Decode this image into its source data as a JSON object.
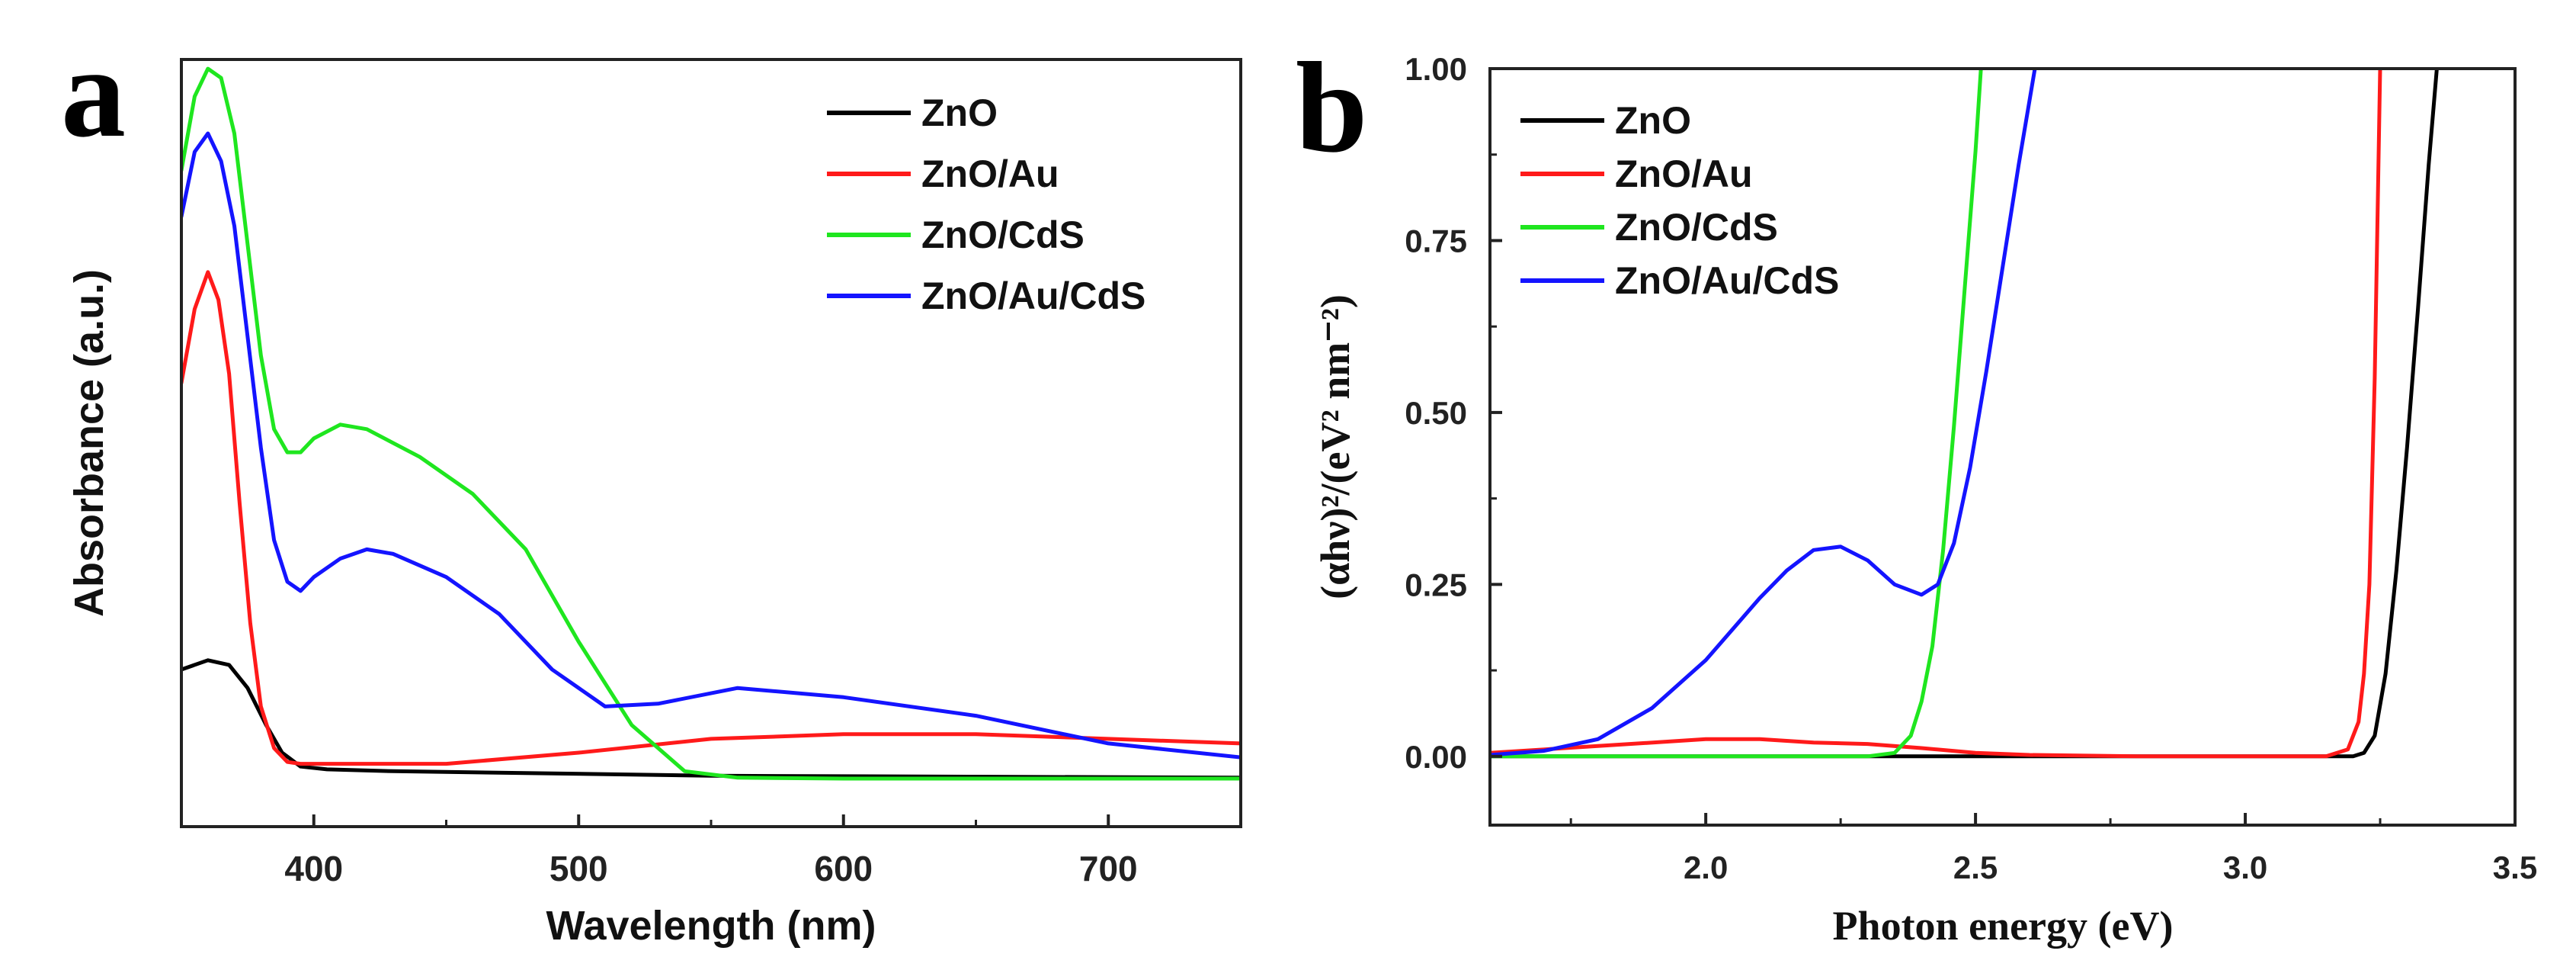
{
  "chart_data": [
    {
      "panel_label": "a",
      "type": "line",
      "title": "",
      "xlabel": "Wavelength (nm)",
      "ylabel": "Absorbance (a.u.)",
      "xlim": [
        350,
        750
      ],
      "ylim": [
        0,
        1
      ],
      "xticks": [
        "400",
        "500",
        "600",
        "700"
      ],
      "yticks": [],
      "legend_position": "top-right",
      "series": [
        {
          "name": "ZnO",
          "color": "#000000",
          "x": [
            350,
            360,
            368,
            375,
            382,
            388,
            395,
            405,
            430,
            480,
            550,
            650,
            750
          ],
          "y": [
            0.12,
            0.13,
            0.125,
            0.1,
            0.06,
            0.03,
            0.015,
            0.012,
            0.01,
            0.008,
            0.005,
            0.004,
            0.003
          ]
        },
        {
          "name": "ZnO/Au",
          "color": "#ff1a1a",
          "x": [
            350,
            355,
            360,
            364,
            368,
            372,
            376,
            380,
            385,
            390,
            395,
            400,
            450,
            500,
            550,
            600,
            650,
            700,
            750
          ],
          "y": [
            0.43,
            0.51,
            0.55,
            0.52,
            0.44,
            0.3,
            0.17,
            0.08,
            0.035,
            0.02,
            0.018,
            0.018,
            0.018,
            0.03,
            0.045,
            0.05,
            0.05,
            0.045,
            0.04
          ]
        },
        {
          "name": "ZnO/CdS",
          "color": "#1fe61f",
          "x": [
            350,
            355,
            360,
            365,
            370,
            375,
            380,
            385,
            390,
            395,
            400,
            410,
            420,
            440,
            460,
            480,
            500,
            520,
            540,
            560,
            600,
            700,
            750
          ],
          "y": [
            0.66,
            0.74,
            0.77,
            0.76,
            0.7,
            0.58,
            0.46,
            0.38,
            0.355,
            0.355,
            0.37,
            0.385,
            0.38,
            0.35,
            0.31,
            0.25,
            0.15,
            0.06,
            0.01,
            0.003,
            0.002,
            0.002,
            0.002
          ]
        },
        {
          "name": "ZnO/Au/CdS",
          "color": "#1414ff",
          "x": [
            350,
            355,
            360,
            365,
            370,
            375,
            380,
            385,
            390,
            395,
            400,
            410,
            420,
            430,
            450,
            470,
            490,
            510,
            530,
            560,
            600,
            650,
            700,
            750
          ],
          "y": [
            0.61,
            0.68,
            0.7,
            0.67,
            0.6,
            0.48,
            0.36,
            0.26,
            0.215,
            0.205,
            0.22,
            0.24,
            0.25,
            0.245,
            0.22,
            0.18,
            0.12,
            0.08,
            0.083,
            0.1,
            0.09,
            0.07,
            0.04,
            0.025
          ]
        }
      ]
    },
    {
      "panel_label": "b",
      "type": "line",
      "title": "",
      "xlabel": "Photon energy (eV)",
      "ylabel": "(αhν)²/(eV² nm⁻²)",
      "xlim": [
        1.6,
        3.5
      ],
      "ylim": [
        -0.1,
        1.0
      ],
      "xticks": [
        "2.0",
        "2.5",
        "3.0",
        "3.5"
      ],
      "yticks": [
        "0.00",
        "0.25",
        "0.50",
        "0.75",
        "1.00"
      ],
      "legend_position": "top-left",
      "series": [
        {
          "name": "ZnO",
          "color": "#000000",
          "x": [
            1.6,
            2.0,
            2.5,
            3.0,
            3.2,
            3.22,
            3.24,
            3.26,
            3.28,
            3.3,
            3.32,
            3.34,
            3.355
          ],
          "y": [
            0.0,
            0.0,
            0.0,
            0.0,
            0.0,
            0.005,
            0.03,
            0.12,
            0.27,
            0.45,
            0.65,
            0.86,
            1.0
          ]
        },
        {
          "name": "ZnO/Au",
          "color": "#ff1a1a",
          "x": [
            1.6,
            1.8,
            2.0,
            2.1,
            2.2,
            2.3,
            2.4,
            2.5,
            2.6,
            2.8,
            3.0,
            3.15,
            3.19,
            3.21,
            3.22,
            3.23,
            3.24,
            3.25
          ],
          "y": [
            0.005,
            0.015,
            0.025,
            0.025,
            0.02,
            0.018,
            0.012,
            0.005,
            0.002,
            0.0,
            0.0,
            0.0,
            0.01,
            0.05,
            0.12,
            0.25,
            0.55,
            1.0
          ]
        },
        {
          "name": "ZnO/CdS",
          "color": "#1fe61f",
          "x": [
            1.6,
            2.0,
            2.3,
            2.35,
            2.38,
            2.4,
            2.42,
            2.44,
            2.46,
            2.48,
            2.5,
            2.51
          ],
          "y": [
            0.0,
            0.0,
            0.0,
            0.005,
            0.03,
            0.08,
            0.16,
            0.3,
            0.48,
            0.68,
            0.88,
            1.0
          ]
        },
        {
          "name": "ZnO/Au/CdS",
          "color": "#1414ff",
          "x": [
            1.6,
            1.7,
            1.8,
            1.9,
            2.0,
            2.1,
            2.15,
            2.2,
            2.25,
            2.3,
            2.35,
            2.4,
            2.43,
            2.46,
            2.49,
            2.52,
            2.55,
            2.58,
            2.61
          ],
          "y": [
            0.002,
            0.008,
            0.025,
            0.07,
            0.14,
            0.23,
            0.27,
            0.3,
            0.305,
            0.285,
            0.25,
            0.235,
            0.25,
            0.31,
            0.42,
            0.56,
            0.71,
            0.86,
            1.0
          ]
        }
      ]
    }
  ]
}
